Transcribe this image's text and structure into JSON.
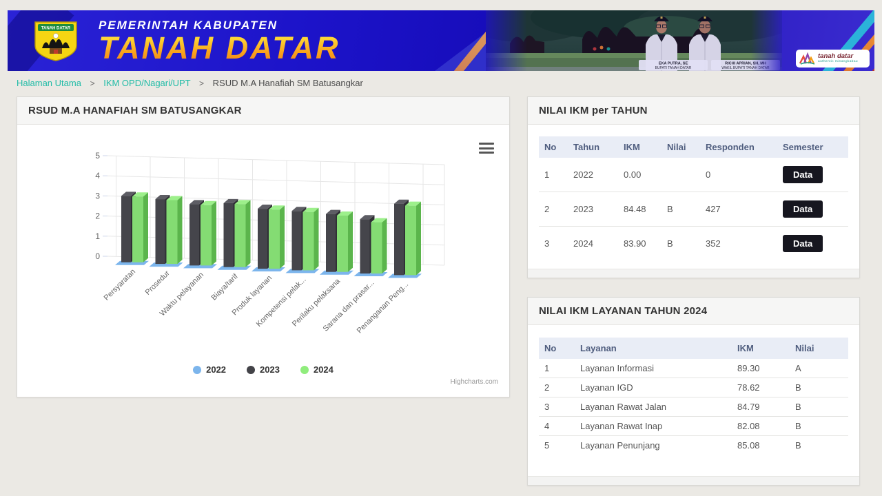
{
  "header": {
    "agency_line": "PEMERINTAH KABUPATEN",
    "region_name": "TANAH DATAR",
    "crest_banner_text": "TANAH DATAR",
    "officials": [
      {
        "name": "EKA PUTRA, SE",
        "title": "BUPATI TANAH DATAR"
      },
      {
        "name": "RICHI APRIAN, SH, MH",
        "title": "WAKIL BUPATI TANAH DATAR"
      }
    ],
    "brand": {
      "line1": "tanah datar",
      "line2": "authentic minangkabau"
    }
  },
  "breadcrumb": {
    "separator": ">",
    "items": [
      {
        "label": "Halaman Utama"
      },
      {
        "label": "IKM OPD/Nagari/UPT"
      },
      {
        "label": "RSUD M.A Hanafiah SM Batusangkar"
      }
    ]
  },
  "chart_panel": {
    "title": "RSUD M.A HANAFIAH SM BATUSANGKAR"
  },
  "chart_data": {
    "type": "bar",
    "subtype": "3d-column",
    "title": "",
    "categories": [
      "Persyaratan",
      "Prosedur",
      "Waktu pelayanan",
      "Biaya/tarif",
      "Produk layanan",
      "Kompetensi pelak...",
      "Perilaku pelaksana",
      "Sarana dan prasar...",
      "Penanganan Peng..."
    ],
    "series": [
      {
        "name": "2022",
        "color": "#7cb5ec",
        "values": [
          0,
          0,
          0,
          0,
          0,
          0,
          0,
          0,
          0
        ]
      },
      {
        "name": "2023",
        "color": "#434348",
        "values": [
          3.3,
          3.22,
          3.05,
          3.18,
          2.98,
          2.95,
          2.88,
          2.7,
          3.55
        ]
      },
      {
        "name": "2024",
        "color": "#90ed7d",
        "values": [
          3.27,
          3.17,
          3.0,
          3.13,
          2.94,
          2.9,
          2.8,
          2.55,
          3.45
        ]
      }
    ],
    "ylim": [
      0,
      5
    ],
    "yticks": [
      0,
      1,
      2,
      3,
      4,
      5
    ],
    "grid": true,
    "legend_position": "bottom",
    "credit": "Highcharts.com"
  },
  "ikm_per_tahun": {
    "title": "NILAI IKM per TAHUN",
    "columns": [
      "No",
      "Tahun",
      "IKM",
      "Nilai",
      "Responden",
      "Semester"
    ],
    "rows": [
      {
        "no": "1",
        "tahun": "2022",
        "ikm": "0.00",
        "nilai": "",
        "responden": "0",
        "action_label": "Data"
      },
      {
        "no": "2",
        "tahun": "2023",
        "ikm": "84.48",
        "nilai": "B",
        "responden": "427",
        "action_label": "Data"
      },
      {
        "no": "3",
        "tahun": "2024",
        "ikm": "83.90",
        "nilai": "B",
        "responden": "352",
        "action_label": "Data"
      }
    ]
  },
  "ikm_layanan": {
    "title": "NILAI IKM LAYANAN TAHUN 2024",
    "columns": [
      "No",
      "Layanan",
      "IKM",
      "Nilai"
    ],
    "rows": [
      {
        "no": "1",
        "layanan": "Layanan Informasi",
        "ikm": "89.30",
        "nilai": "A"
      },
      {
        "no": "2",
        "layanan": "Layanan IGD",
        "ikm": "78.62",
        "nilai": "B"
      },
      {
        "no": "3",
        "layanan": "Layanan Rawat Jalan",
        "ikm": "84.79",
        "nilai": "B"
      },
      {
        "no": "4",
        "layanan": "Layanan Rawat Inap",
        "ikm": "82.08",
        "nilai": "B"
      },
      {
        "no": "5",
        "layanan": "Layanan Penunjang",
        "ikm": "85.08",
        "nilai": "B"
      }
    ]
  },
  "colors": {
    "link_teal": "#1fbba6",
    "button_dark": "#16161f",
    "banner_blue": "#1c13c9",
    "accent_orange": "#ef8a2a",
    "table_header_bg": "#e9edf6"
  }
}
